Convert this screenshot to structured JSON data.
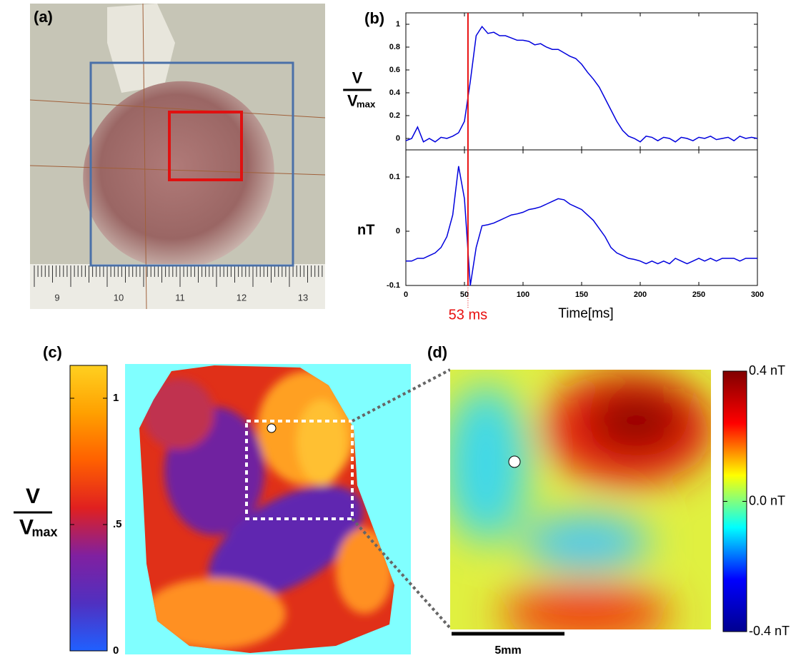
{
  "panel_labels": [
    "(a)",
    "(b)",
    "(c)",
    "(d)"
  ],
  "ruler_labels": [
    "9",
    "10",
    "11",
    "12",
    "13"
  ],
  "marker_label": "53 ms",
  "scale_bar_label": "5mm",
  "chart_data": [
    {
      "type": "line",
      "ylabel": "V",
      "ylabel_denominator": "V",
      "ylabel_sub": "max",
      "x": [
        0,
        5,
        10,
        15,
        20,
        25,
        30,
        35,
        40,
        45,
        50,
        55,
        60,
        65,
        70,
        75,
        80,
        85,
        90,
        95,
        100,
        105,
        110,
        115,
        120,
        125,
        130,
        135,
        140,
        145,
        150,
        155,
        160,
        165,
        170,
        175,
        180,
        185,
        190,
        195,
        200,
        205,
        210,
        215,
        220,
        225,
        230,
        235,
        240,
        245,
        250,
        255,
        260,
        265,
        270,
        275,
        280,
        285,
        290,
        295,
        300
      ],
      "series": [
        {
          "color": "#0000dd",
          "values": [
            -0.02,
            0.0,
            0.1,
            -0.03,
            0.0,
            -0.03,
            0.01,
            0.0,
            0.02,
            0.05,
            0.15,
            0.5,
            0.9,
            0.98,
            0.92,
            0.93,
            0.9,
            0.9,
            0.88,
            0.86,
            0.86,
            0.85,
            0.82,
            0.83,
            0.8,
            0.78,
            0.78,
            0.75,
            0.72,
            0.7,
            0.65,
            0.58,
            0.52,
            0.45,
            0.35,
            0.25,
            0.15,
            0.07,
            0.02,
            0.0,
            -0.03,
            0.02,
            0.01,
            -0.02,
            0.01,
            0.0,
            -0.03,
            0.01,
            0.0,
            -0.02,
            0.01,
            0.0,
            0.02,
            -0.01,
            0.0,
            0.01,
            -0.02,
            0.02,
            0.0,
            0.01,
            0.0
          ]
        }
      ],
      "xlim": [
        0,
        300
      ],
      "xticks": [
        0,
        50,
        100,
        150,
        200,
        250,
        300
      ],
      "ylim": [
        -0.1,
        1.1
      ],
      "yticks": [
        0,
        0.2,
        0.4,
        0.6,
        0.8,
        1
      ],
      "marker_x": 53,
      "marker_color": "#e81010"
    },
    {
      "type": "line",
      "ylabel": "nT",
      "xlabel": "Time[ms]",
      "x": [
        0,
        5,
        10,
        15,
        20,
        25,
        30,
        35,
        40,
        45,
        50,
        55,
        60,
        65,
        70,
        75,
        80,
        85,
        90,
        95,
        100,
        105,
        110,
        115,
        120,
        125,
        130,
        135,
        140,
        145,
        150,
        155,
        160,
        165,
        170,
        175,
        180,
        185,
        190,
        195,
        200,
        205,
        210,
        215,
        220,
        225,
        230,
        235,
        240,
        245,
        250,
        255,
        260,
        265,
        270,
        275,
        280,
        285,
        290,
        295,
        300
      ],
      "series": [
        {
          "color": "#0000dd",
          "values": [
            -0.055,
            -0.055,
            -0.05,
            -0.05,
            -0.045,
            -0.04,
            -0.03,
            -0.01,
            0.03,
            0.12,
            0.06,
            -0.1,
            -0.03,
            0.01,
            0.012,
            0.015,
            0.02,
            0.025,
            0.03,
            0.032,
            0.035,
            0.04,
            0.042,
            0.045,
            0.05,
            0.055,
            0.06,
            0.058,
            0.05,
            0.045,
            0.04,
            0.03,
            0.02,
            0.005,
            -0.01,
            -0.03,
            -0.04,
            -0.045,
            -0.05,
            -0.052,
            -0.055,
            -0.06,
            -0.055,
            -0.06,
            -0.055,
            -0.06,
            -0.05,
            -0.055,
            -0.06,
            -0.055,
            -0.05,
            -0.055,
            -0.05,
            -0.055,
            -0.05,
            -0.05,
            -0.05,
            -0.055,
            -0.05,
            -0.05,
            -0.05
          ]
        }
      ],
      "xlim": [
        0,
        300
      ],
      "xticks": [
        0,
        50,
        100,
        150,
        200,
        250,
        300
      ],
      "ylim": [
        -0.1,
        0.15
      ],
      "yticks": [
        -0.1,
        0,
        0.1
      ]
    },
    {
      "type": "colorbar",
      "ylabel": "V",
      "ylabel_denominator": "V",
      "ylabel_sub": "max",
      "ylim": [
        0,
        1.13
      ],
      "yticks": [
        0,
        {
          "value": 0.5,
          "label": ".5"
        },
        1
      ],
      "colors": [
        "#2060ff",
        "#5030c0",
        "#8020a0",
        "#e02020",
        "#ff6000",
        "#ffa000",
        "#ffd020"
      ]
    },
    {
      "type": "colorbar",
      "ylim": [
        -0.4,
        0.4
      ],
      "yticks": [
        {
          "value": -0.4,
          "label": "-0.4 nT"
        },
        {
          "value": 0,
          "label": "0.0 nT"
        },
        {
          "value": 0.4,
          "label": "0.4 nT"
        }
      ],
      "colors": [
        "#00008f",
        "#0000ff",
        "#00ffff",
        "#ffff00",
        "#ff0000",
        "#800000"
      ]
    }
  ]
}
